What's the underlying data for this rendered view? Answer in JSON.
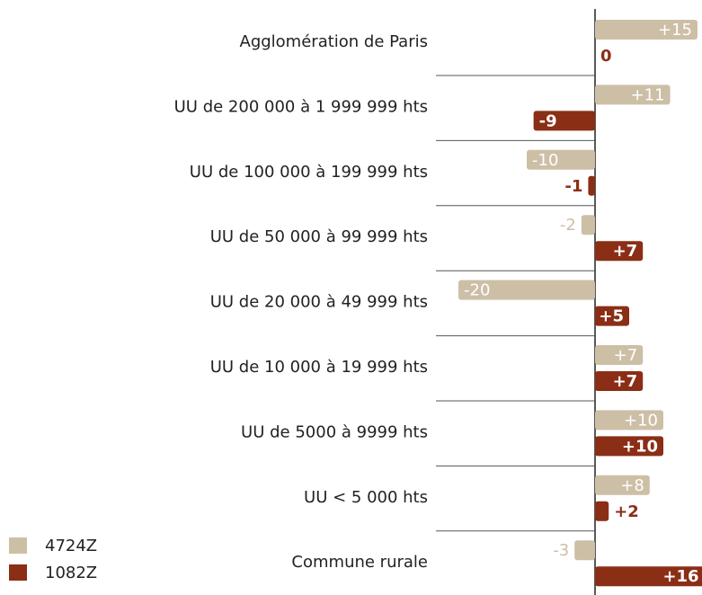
{
  "chart_data": {
    "type": "barh",
    "categories": [
      "Agglomération de Paris",
      "UU de 200 000 à 1 999 999 hts",
      "UU de 100 000 à 199 999 hts",
      "UU de 50 000 à 99 999 hts",
      "UU de 20 000 à 49 999 hts",
      "UU de 10 000 à 19 999 hts",
      "UU de 5000 à 9999 hts",
      "UU < 5 000 hts",
      "Commune rurale"
    ],
    "series": [
      {
        "name": "4724Z",
        "color": "#cdbfa6",
        "values": [
          15,
          11,
          -10,
          -2,
          -20,
          7,
          10,
          8,
          -3
        ],
        "value_labels": [
          "+15",
          "+11",
          "-10",
          "-2",
          "-20",
          "+7",
          "+10",
          "+8",
          "-3"
        ]
      },
      {
        "name": "1082Z",
        "color": "#8b2e16",
        "values": [
          0,
          -9,
          -1,
          7,
          5,
          7,
          10,
          2,
          16
        ],
        "value_labels": [
          "0",
          "-9",
          "-1",
          "+7",
          "+5",
          "+7",
          "+10",
          "+2",
          "+16"
        ]
      }
    ],
    "legend": "bottom-left"
  }
}
